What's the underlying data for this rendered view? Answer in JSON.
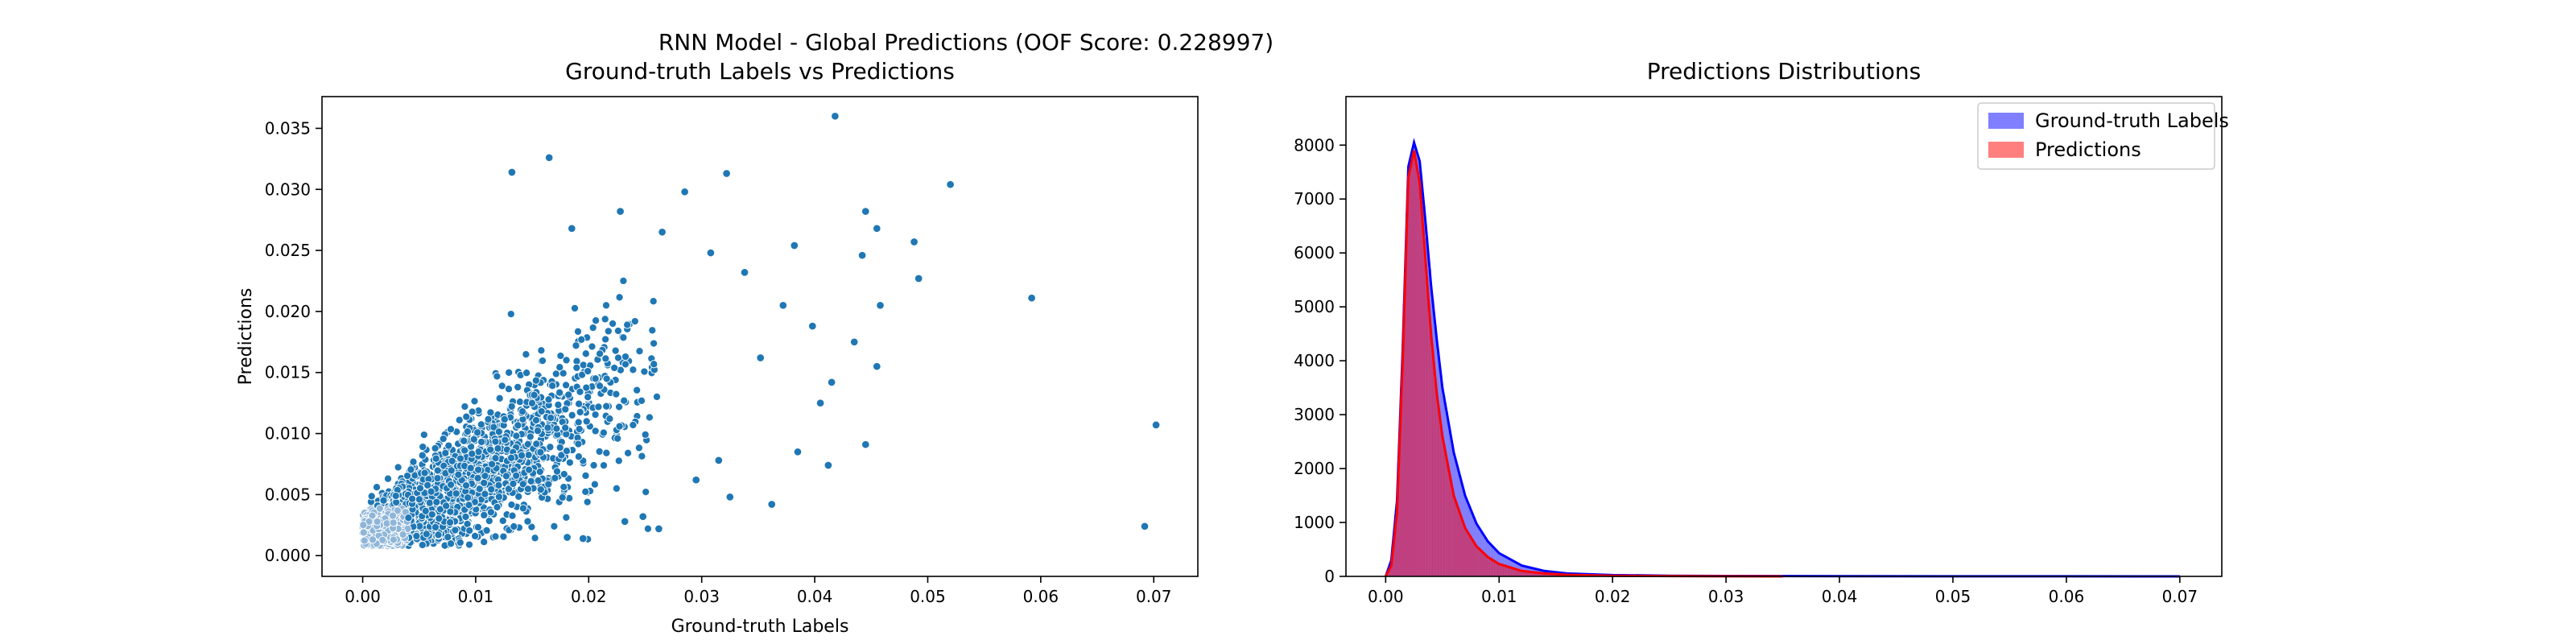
{
  "figure": {
    "suptitle": "RNN Model - Global Predictions (OOF Score: 0.228997)"
  },
  "colors": {
    "scatter": "#1f77b4",
    "ground_truth": "#0000ff",
    "predictions": "#ff0000",
    "overlap": "#8b1a55",
    "axis": "#000000"
  },
  "chart_data": [
    {
      "type": "scatter",
      "title": "Ground-truth Labels vs Predictions",
      "xlabel": "Ground-truth Labels",
      "ylabel": "Predictions",
      "xlim": [
        -0.0036,
        0.0739
      ],
      "ylim": [
        -0.0017,
        0.0376
      ],
      "x_ticks": [
        0.0,
        0.01,
        0.02,
        0.03,
        0.04,
        0.05,
        0.06,
        0.07
      ],
      "x_tick_labels": [
        "0.00",
        "0.01",
        "0.02",
        "0.03",
        "0.04",
        "0.05",
        "0.06",
        "0.07"
      ],
      "y_ticks": [
        0.0,
        0.005,
        0.01,
        0.015,
        0.02,
        0.025,
        0.03,
        0.035
      ],
      "y_tick_labels": [
        "0.000",
        "0.005",
        "0.010",
        "0.015",
        "0.020",
        "0.025",
        "0.030",
        "0.035"
      ],
      "grid": false,
      "outliers": [
        {
          "x": 0.0418,
          "y": 0.036
        },
        {
          "x": 0.0165,
          "y": 0.0326
        },
        {
          "x": 0.0132,
          "y": 0.0314
        },
        {
          "x": 0.0322,
          "y": 0.0313
        },
        {
          "x": 0.052,
          "y": 0.0304
        },
        {
          "x": 0.0285,
          "y": 0.0298
        },
        {
          "x": 0.0445,
          "y": 0.0282
        },
        {
          "x": 0.0228,
          "y": 0.0282
        },
        {
          "x": 0.0185,
          "y": 0.0268
        },
        {
          "x": 0.0265,
          "y": 0.0265
        },
        {
          "x": 0.0455,
          "y": 0.0268
        },
        {
          "x": 0.0488,
          "y": 0.0257
        },
        {
          "x": 0.0382,
          "y": 0.0254
        },
        {
          "x": 0.0442,
          "y": 0.0246
        },
        {
          "x": 0.0492,
          "y": 0.0227
        },
        {
          "x": 0.0592,
          "y": 0.0211
        },
        {
          "x": 0.0458,
          "y": 0.0205
        },
        {
          "x": 0.0702,
          "y": 0.0107
        },
        {
          "x": 0.0692,
          "y": 0.0024
        },
        {
          "x": 0.0445,
          "y": 0.0091
        },
        {
          "x": 0.0412,
          "y": 0.0074
        },
        {
          "x": 0.0362,
          "y": 0.0042
        },
        {
          "x": 0.0325,
          "y": 0.0048
        },
        {
          "x": 0.0385,
          "y": 0.0085
        },
        {
          "x": 0.0415,
          "y": 0.0142
        },
        {
          "x": 0.0455,
          "y": 0.0155
        },
        {
          "x": 0.0398,
          "y": 0.0188
        },
        {
          "x": 0.0435,
          "y": 0.0175
        },
        {
          "x": 0.0405,
          "y": 0.0125
        },
        {
          "x": 0.0352,
          "y": 0.0162
        },
        {
          "x": 0.0372,
          "y": 0.0205
        },
        {
          "x": 0.0338,
          "y": 0.0232
        },
        {
          "x": 0.0308,
          "y": 0.0248
        },
        {
          "x": 0.0262,
          "y": 0.0022
        },
        {
          "x": 0.0232,
          "y": 0.0028
        },
        {
          "x": 0.0181,
          "y": 0.0015
        },
        {
          "x": 0.0195,
          "y": 0.0014
        },
        {
          "x": 0.0248,
          "y": 0.0032
        },
        {
          "x": 0.0295,
          "y": 0.0062
        },
        {
          "x": 0.0315,
          "y": 0.0078
        }
      ]
    },
    {
      "type": "histogram",
      "title": "Predictions Distributions",
      "xlim": [
        -0.0035,
        0.0737
      ],
      "ylim": [
        0,
        8900
      ],
      "x_ticks": [
        0.0,
        0.01,
        0.02,
        0.03,
        0.04,
        0.05,
        0.06,
        0.07
      ],
      "x_tick_labels": [
        "0.00",
        "0.01",
        "0.02",
        "0.03",
        "0.04",
        "0.05",
        "0.06",
        "0.07"
      ],
      "y_ticks": [
        0,
        1000,
        2000,
        3000,
        4000,
        5000,
        6000,
        7000,
        8000
      ],
      "y_tick_labels": [
        "0",
        "1000",
        "2000",
        "3000",
        "4000",
        "5000",
        "6000",
        "7000",
        "8000"
      ],
      "grid": false,
      "legend": "top-right",
      "series": [
        {
          "name": "Ground-truth Labels",
          "color": "#0000ff",
          "points": [
            [
              0.0,
              0
            ],
            [
              0.0005,
              300
            ],
            [
              0.001,
              1400
            ],
            [
              0.0015,
              4200
            ],
            [
              0.002,
              7600
            ],
            [
              0.0025,
              8050
            ],
            [
              0.003,
              7700
            ],
            [
              0.0035,
              6600
            ],
            [
              0.004,
              5400
            ],
            [
              0.0045,
              4400
            ],
            [
              0.005,
              3500
            ],
            [
              0.006,
              2300
            ],
            [
              0.007,
              1500
            ],
            [
              0.008,
              980
            ],
            [
              0.009,
              650
            ],
            [
              0.01,
              430
            ],
            [
              0.012,
              200
            ],
            [
              0.014,
              100
            ],
            [
              0.016,
              55
            ],
            [
              0.02,
              25
            ],
            [
              0.025,
              12
            ],
            [
              0.03,
              7
            ],
            [
              0.04,
              4
            ],
            [
              0.05,
              2
            ],
            [
              0.06,
              1
            ],
            [
              0.07,
              0
            ]
          ]
        },
        {
          "name": "Predictions",
          "color": "#ff0000",
          "points": [
            [
              0.0,
              0
            ],
            [
              0.0005,
              200
            ],
            [
              0.001,
              1200
            ],
            [
              0.0015,
              4000
            ],
            [
              0.002,
              7400
            ],
            [
              0.0025,
              7900
            ],
            [
              0.003,
              7300
            ],
            [
              0.0035,
              5900
            ],
            [
              0.004,
              4500
            ],
            [
              0.0045,
              3400
            ],
            [
              0.005,
              2600
            ],
            [
              0.006,
              1500
            ],
            [
              0.007,
              900
            ],
            [
              0.008,
              560
            ],
            [
              0.009,
              360
            ],
            [
              0.01,
              230
            ],
            [
              0.012,
              100
            ],
            [
              0.014,
              55
            ],
            [
              0.016,
              30
            ],
            [
              0.02,
              12
            ],
            [
              0.025,
              5
            ],
            [
              0.03,
              2
            ],
            [
              0.035,
              0
            ]
          ]
        }
      ]
    }
  ]
}
